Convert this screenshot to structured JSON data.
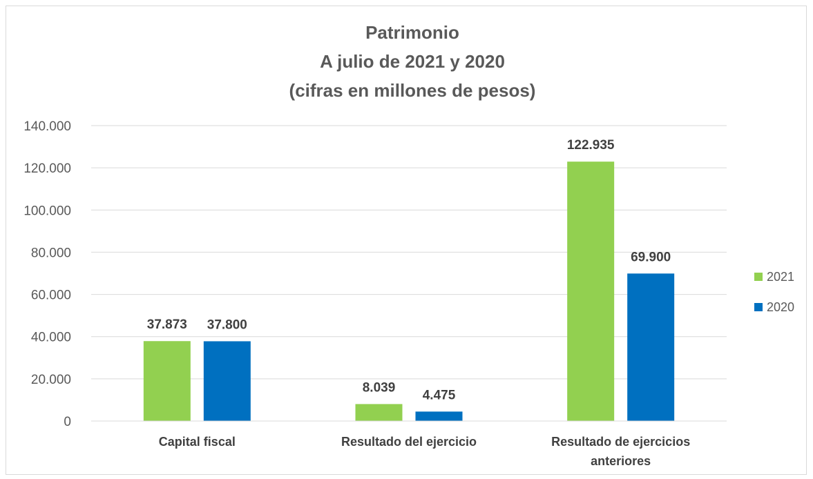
{
  "chart_data": {
    "type": "bar",
    "title_lines": [
      "Patrimonio",
      "A julio de 2021 y 2020",
      "(cifras en millones de pesos)"
    ],
    "categories": [
      [
        "Capital fiscal"
      ],
      [
        "Resultado del ejercicio"
      ],
      [
        "Resultado de ejercicios",
        "anteriores"
      ]
    ],
    "series": [
      {
        "name": "2021",
        "color": "#92d050",
        "values": [
          37873,
          8039,
          122935
        ],
        "labels": [
          "37.873",
          "8.039",
          "122.935"
        ]
      },
      {
        "name": "2020",
        "color": "#0070c0",
        "values": [
          37800,
          4475,
          69900
        ],
        "labels": [
          "37.800",
          "4.475",
          "69.900"
        ]
      }
    ],
    "ylim": [
      0,
      140000
    ],
    "yticks": [
      {
        "value": 0,
        "label": "0"
      },
      {
        "value": 20000,
        "label": "20.000"
      },
      {
        "value": 40000,
        "label": "40.000"
      },
      {
        "value": 60000,
        "label": "60.000"
      },
      {
        "value": 80000,
        "label": "80.000"
      },
      {
        "value": 100000,
        "label": "100.000"
      },
      {
        "value": 120000,
        "label": "120.000"
      },
      {
        "value": 140000,
        "label": "140.000"
      }
    ],
    "grid": true,
    "legend_position": "right"
  }
}
